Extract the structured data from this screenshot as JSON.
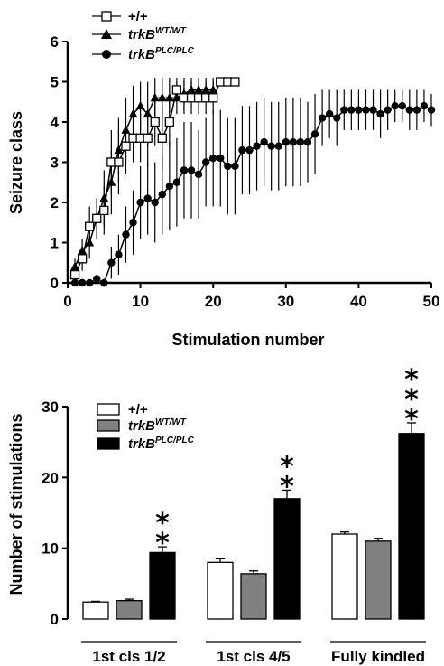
{
  "chart_data": [
    {
      "type": "line",
      "xlabel": "Stimulation number",
      "ylabel": "Seizure class",
      "xlim": [
        0,
        50
      ],
      "ylim": [
        0,
        6
      ],
      "xticks": [
        "0",
        "10",
        "20",
        "30",
        "40",
        "50"
      ],
      "yticks": [
        "0",
        "1",
        "2",
        "3",
        "4",
        "5",
        "6"
      ],
      "legend": [
        {
          "label": "+/+",
          "sup": "",
          "marker": "open-square",
          "italic": false
        },
        {
          "label": "trkB",
          "sup": "WT/WT",
          "marker": "filled-triangle",
          "italic": true
        },
        {
          "label": "trkB",
          "sup": "PLC/PLC",
          "marker": "filled-circle",
          "italic": true
        }
      ],
      "series": [
        {
          "name": "+/+",
          "marker": "square-open",
          "x": [
            1,
            2,
            3,
            4,
            5,
            6,
            7,
            8,
            9,
            10,
            11,
            12,
            13,
            14,
            15,
            16,
            17,
            18,
            19,
            20,
            21,
            22,
            23
          ],
          "y": [
            0.2,
            0.6,
            1.4,
            1.6,
            1.8,
            3.0,
            3.0,
            3.4,
            3.6,
            3.6,
            3.6,
            4.0,
            3.6,
            4.0,
            4.8,
            4.6,
            4.6,
            4.6,
            4.6,
            4.6,
            5.0,
            5.0,
            5.0
          ],
          "err": [
            0.1,
            0.3,
            0.5,
            0.5,
            0.6,
            0.8,
            0.8,
            0.7,
            0.6,
            0.6,
            0.7,
            0.6,
            0.8,
            0.6,
            0.3,
            0.4,
            0.4,
            0.4,
            0.4,
            0.4,
            0,
            0,
            0
          ]
        },
        {
          "name": "trkB WT/WT",
          "marker": "triangle-filled",
          "x": [
            1,
            2,
            3,
            4,
            5,
            6,
            7,
            8,
            9,
            10,
            11,
            12,
            13,
            14,
            15,
            16,
            17,
            18,
            19,
            20
          ],
          "y": [
            0.4,
            0.8,
            1.0,
            1.6,
            2.1,
            2.5,
            3.3,
            3.8,
            4.2,
            4.4,
            4.2,
            4.6,
            4.6,
            4.6,
            4.6,
            4.7,
            4.8,
            4.8,
            4.8,
            4.8
          ],
          "err": [
            0.2,
            0.3,
            0.4,
            0.5,
            0.7,
            0.8,
            0.8,
            0.8,
            0.7,
            0.6,
            0.8,
            0.5,
            0.5,
            0.5,
            0.4,
            0.4,
            0.3,
            0.3,
            0.3,
            0.3
          ]
        },
        {
          "name": "trkB PLC/PLC",
          "marker": "circle-filled",
          "x": [
            1,
            2,
            3,
            4,
            5,
            6,
            7,
            8,
            9,
            10,
            11,
            12,
            13,
            14,
            15,
            16,
            17,
            18,
            19,
            20,
            21,
            22,
            23,
            24,
            25,
            26,
            27,
            28,
            29,
            30,
            31,
            32,
            33,
            34,
            35,
            36,
            37,
            38,
            39,
            40,
            41,
            42,
            43,
            44,
            45,
            46,
            47,
            48,
            49,
            50
          ],
          "y": [
            0,
            0,
            0,
            0.1,
            0,
            0.5,
            0.7,
            1.2,
            1.5,
            2.0,
            2.1,
            2.0,
            2.2,
            2.4,
            2.5,
            2.8,
            2.8,
            2.7,
            3.0,
            3.1,
            3.1,
            2.9,
            2.9,
            3.3,
            3.3,
            3.4,
            3.5,
            3.4,
            3.4,
            3.5,
            3.5,
            3.5,
            3.5,
            3.7,
            4.1,
            4.2,
            4.1,
            4.3,
            4.3,
            4.3,
            4.3,
            4.3,
            4.2,
            4.3,
            4.4,
            4.4,
            4.3,
            4.3,
            4.4,
            4.3
          ],
          "err": [
            0,
            0,
            0,
            0.1,
            0.1,
            0.4,
            0.5,
            0.7,
            0.8,
            0.9,
            0.9,
            1.0,
            1.0,
            1.1,
            1.1,
            1.2,
            1.2,
            1.1,
            1.1,
            1.2,
            1.2,
            1.2,
            1.2,
            1.1,
            1.1,
            1.1,
            1.1,
            1.1,
            1.1,
            1.1,
            1.1,
            1.1,
            1.0,
            1.0,
            0.7,
            0.6,
            0.7,
            0.5,
            0.5,
            0.5,
            0.5,
            0.5,
            0.6,
            0.5,
            0.4,
            0.4,
            0.5,
            0.5,
            0.4,
            0.4
          ]
        }
      ]
    },
    {
      "type": "bar",
      "ylabel": "Number of stimulations",
      "ylim": [
        0,
        30
      ],
      "yticks": [
        "0",
        "10",
        "20",
        "30"
      ],
      "categories": [
        "1st cls 1/2",
        "1st cls 4/5",
        "Fully kindled"
      ],
      "legend": [
        {
          "label": "+/+",
          "sup": "",
          "color": "#ffffff",
          "italic": false
        },
        {
          "label": "trkB",
          "sup": "WT/WT",
          "color": "#808080",
          "italic": true
        },
        {
          "label": "trkB",
          "sup": "PLC/PLC",
          "color": "#000000",
          "italic": true
        }
      ],
      "series": [
        {
          "name": "+/+",
          "values": [
            2.4,
            8.0,
            12.0
          ],
          "err": [
            0.1,
            0.5,
            0.3
          ],
          "color": "#ffffff"
        },
        {
          "name": "trkB WT/WT",
          "values": [
            2.6,
            6.4,
            11.0
          ],
          "err": [
            0.2,
            0.4,
            0.4
          ],
          "color": "#808080"
        },
        {
          "name": "trkB PLC/PLC",
          "values": [
            9.4,
            17.0,
            26.2
          ],
          "err": [
            0.8,
            1.2,
            1.5
          ],
          "color": "#000000"
        }
      ],
      "significance": [
        "**",
        "**",
        "***"
      ]
    }
  ]
}
